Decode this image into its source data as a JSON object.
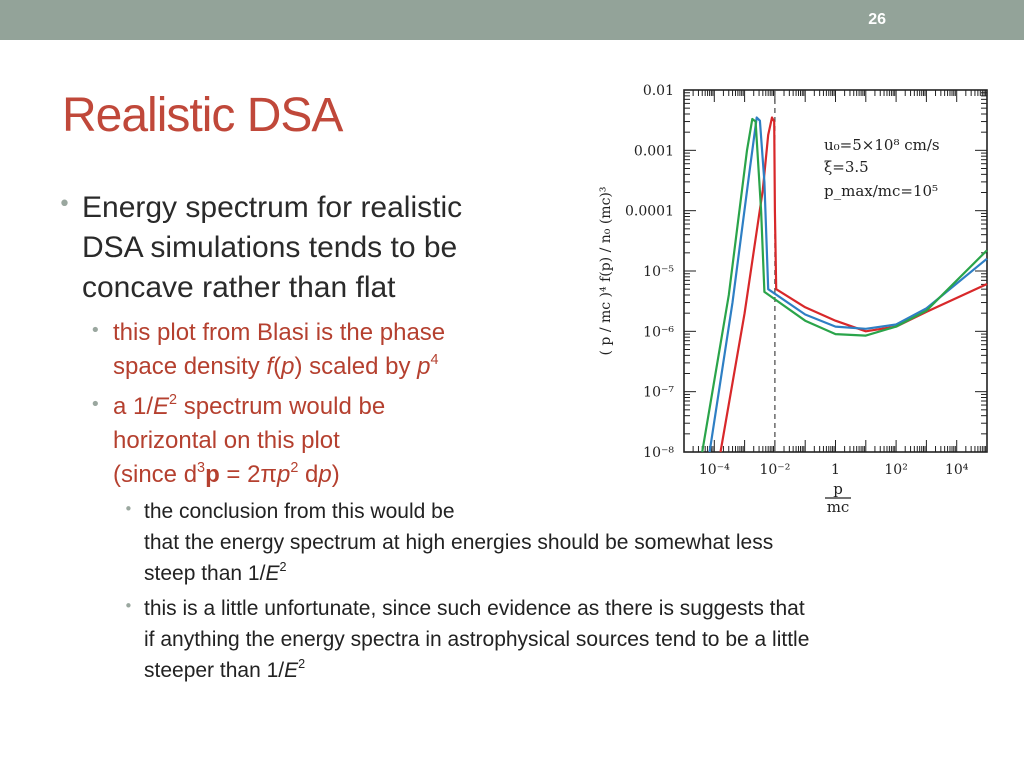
{
  "slide_number": "26",
  "title": "Realistic DSA",
  "bullets": {
    "b1": [
      "Energy spectrum for realistic",
      "DSA simulations tends to be",
      "concave rather than flat"
    ],
    "b2": {
      "l1": "this plot from Blasi is the phase",
      "l2_pre": "space density ",
      "l2_f": "f",
      "l2_open": "(",
      "l2_p": "p",
      "l2_mid": ") scaled by ",
      "l2_p2": "p",
      "l2_exp": "4"
    },
    "b3": {
      "l1_pre": "a 1/",
      "l1_e": "E",
      "l1_exp": "2",
      "l1_post": " spectrum would be",
      "l2": "horizontal on this plot",
      "l3_a": "(since d",
      "l3_exp1": "3",
      "l3_bold": "p",
      "l3_b": " = 2π",
      "l3_p": "p",
      "l3_exp2": "2",
      "l3_c": " d",
      "l3_p2": "p",
      "l3_d": ")"
    },
    "b4": {
      "l1": "the conclusion from this would be",
      "l2": "that the energy spectrum at high energies should be somewhat less",
      "l3_pre": "steep than 1/",
      "l3_e": "E",
      "l3_exp": "2"
    },
    "b5": {
      "l1": "this is a little unfortunate, since such evidence as there is suggests that",
      "l2": "if anything the energy spectra in astrophysical sources tend to be a little",
      "l3_pre": "steeper than 1/",
      "l3_e": "E",
      "l3_exp": "2"
    }
  },
  "colors": {
    "header_bar": "#93a399",
    "title": "#c0483a",
    "level2_text": "#b5402f",
    "red": "#d8282a",
    "blue": "#2e7fc4",
    "green": "#2aa44a"
  },
  "chart_data": {
    "type": "line",
    "log_x": true,
    "log_y": true,
    "xlim": [
      1e-05,
      100000
    ],
    "ylim": [
      1e-08,
      0.01
    ],
    "x_ticks": [
      "10⁻⁴",
      "10⁻²",
      "1",
      "10²",
      "10⁴"
    ],
    "y_ticks": [
      "0.01",
      "0.001",
      "0.0001",
      "10⁻⁵",
      "10⁻⁶",
      "10⁻⁷",
      "10⁻⁸"
    ],
    "xlabel_num": "p",
    "xlabel_den": "mc",
    "ylabel": "( p / mc )⁴ f(p) / n₀ (mc)³",
    "annotations": [
      "u₀=5×10⁸ cm/s",
      "ξ=3.5",
      "p_max/mc=10⁵"
    ],
    "vline_x": 0.01,
    "series": [
      {
        "color": "red",
        "points": [
          [
            0.00016,
            1e-08
          ],
          [
            0.001,
            2e-06
          ],
          [
            0.004,
            0.00022
          ],
          [
            0.006,
            0.0018
          ],
          [
            0.008,
            0.0035
          ],
          [
            0.0095,
            0.003
          ],
          [
            0.01,
            0.0001
          ],
          [
            0.011,
            5e-06
          ],
          [
            0.1,
            2.5e-06
          ],
          [
            1,
            1.5e-06
          ],
          [
            10,
            1e-06
          ],
          [
            100,
            1.2e-06
          ],
          [
            1000,
            2.1e-06
          ],
          [
            100000,
            6.1e-06
          ]
        ]
      },
      {
        "color": "blue",
        "points": [
          [
            7e-05,
            1e-08
          ],
          [
            0.0004,
            3e-06
          ],
          [
            0.0015,
            0.0005
          ],
          [
            0.0025,
            0.0035
          ],
          [
            0.0032,
            0.0031
          ],
          [
            0.0045,
            0.0003
          ],
          [
            0.006,
            5e-06
          ],
          [
            0.1,
            1.9e-06
          ],
          [
            1,
            1.2e-06
          ],
          [
            10,
            1.1e-06
          ],
          [
            100,
            1.3e-06
          ],
          [
            1000,
            2.4e-06
          ],
          [
            100000,
            1.6e-05
          ]
        ]
      },
      {
        "color": "green",
        "points": [
          [
            4e-05,
            1e-08
          ],
          [
            0.0003,
            4e-06
          ],
          [
            0.0012,
            0.001
          ],
          [
            0.0018,
            0.0033
          ],
          [
            0.0023,
            0.003
          ],
          [
            0.0035,
            0.0001
          ],
          [
            0.0045,
            4.5e-06
          ],
          [
            0.1,
            1.5e-06
          ],
          [
            1,
            9e-07
          ],
          [
            10,
            8.5e-07
          ],
          [
            100,
            1.2e-06
          ],
          [
            1000,
            2.2e-06
          ],
          [
            100000,
            2.2e-05
          ]
        ]
      }
    ]
  }
}
